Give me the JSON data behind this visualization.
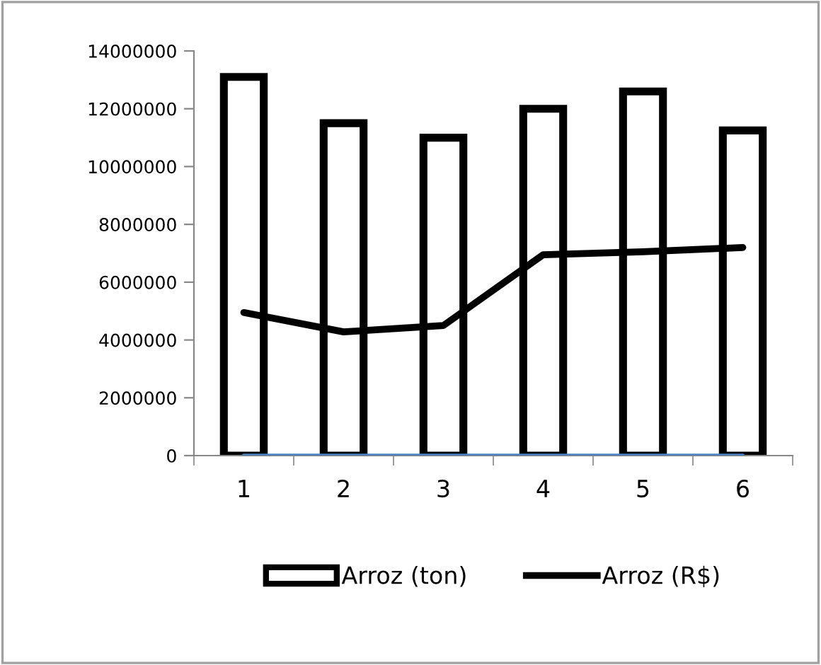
{
  "chart_data": {
    "type": "bar",
    "categories": [
      "1",
      "2",
      "3",
      "4",
      "5",
      "6"
    ],
    "series": [
      {
        "name": "Arroz (ton)",
        "color": "#000000",
        "values": [
          13100000,
          11500000,
          11000000,
          12000000,
          12600000,
          11250000
        ]
      },
      {
        "name": "Arroz (R$)",
        "type": "line",
        "color": "#000000",
        "values": [
          4950000,
          4280000,
          4500000,
          6950000,
          7050000,
          7200000
        ]
      },
      {
        "type": "line",
        "color": "#4f81bd",
        "values": [
          0,
          0,
          0,
          0,
          0,
          0
        ]
      }
    ],
    "ylim": [
      0,
      14000000
    ],
    "yticks": [
      0,
      2000000,
      4000000,
      6000000,
      8000000,
      10000000,
      12000000,
      14000000
    ],
    "grid": false,
    "legend": "bottom"
  }
}
